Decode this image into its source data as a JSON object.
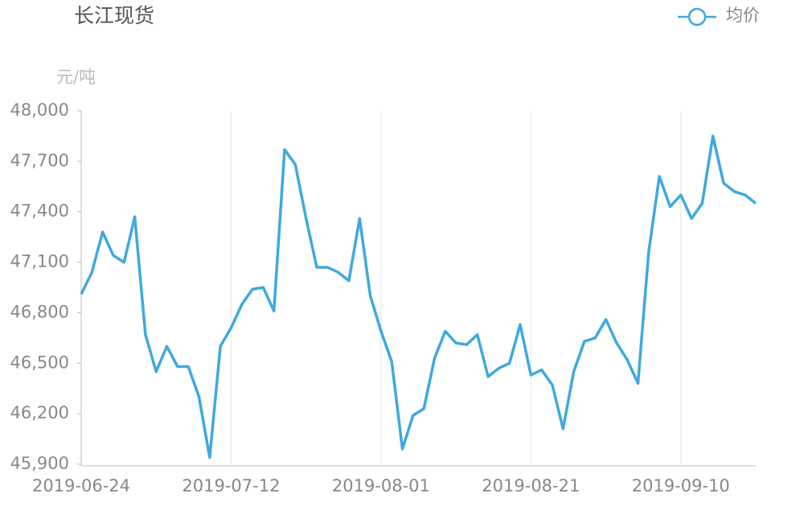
{
  "chart_data": {
    "type": "line",
    "title": "长江现货",
    "y_label": "元/吨",
    "categories": [
      "2019-06-24",
      null,
      null,
      null,
      null,
      null,
      null,
      null,
      null,
      null,
      null,
      null,
      null,
      null,
      "2019-07-12",
      null,
      null,
      null,
      null,
      null,
      null,
      null,
      null,
      null,
      null,
      null,
      null,
      null,
      "2019-08-01",
      null,
      null,
      null,
      null,
      null,
      null,
      null,
      null,
      null,
      null,
      null,
      null,
      null,
      "2019-08-21",
      null,
      null,
      null,
      null,
      null,
      null,
      null,
      null,
      null,
      null,
      null,
      null,
      null,
      "2019-09-10",
      null,
      null,
      null,
      null,
      null,
      null,
      null
    ],
    "series": [
      {
        "name": "均价",
        "color": "#3fa9de",
        "values": [
          46910,
          47040,
          47280,
          47140,
          47100,
          47370,
          46670,
          46450,
          46600,
          46480,
          46480,
          46300,
          45940,
          46600,
          46710,
          46850,
          46940,
          46950,
          46810,
          47770,
          47680,
          47360,
          47070,
          47070,
          47040,
          46990,
          47360,
          46900,
          46690,
          46510,
          45990,
          46190,
          46230,
          46530,
          46690,
          46620,
          46610,
          46670,
          46420,
          46470,
          46500,
          46730,
          46430,
          46460,
          46370,
          46110,
          46450,
          46630,
          46650,
          46760,
          46620,
          46520,
          46380,
          47160,
          47610,
          47430,
          47500,
          47360,
          47450,
          47850,
          47570,
          47520,
          47500,
          47450
        ]
      }
    ],
    "ylim": [
      45900,
      48000
    ],
    "yticks": [
      {
        "value": 45900,
        "label": "45,900"
      },
      {
        "value": 46200,
        "label": "46,200"
      },
      {
        "value": 46500,
        "label": "46,500"
      },
      {
        "value": 46800,
        "label": "46,800"
      },
      {
        "value": 47100,
        "label": "47,100"
      },
      {
        "value": 47400,
        "label": "47,400"
      },
      {
        "value": 47700,
        "label": "47,700"
      },
      {
        "value": 48000,
        "label": "48,000"
      }
    ],
    "grid": "x"
  }
}
